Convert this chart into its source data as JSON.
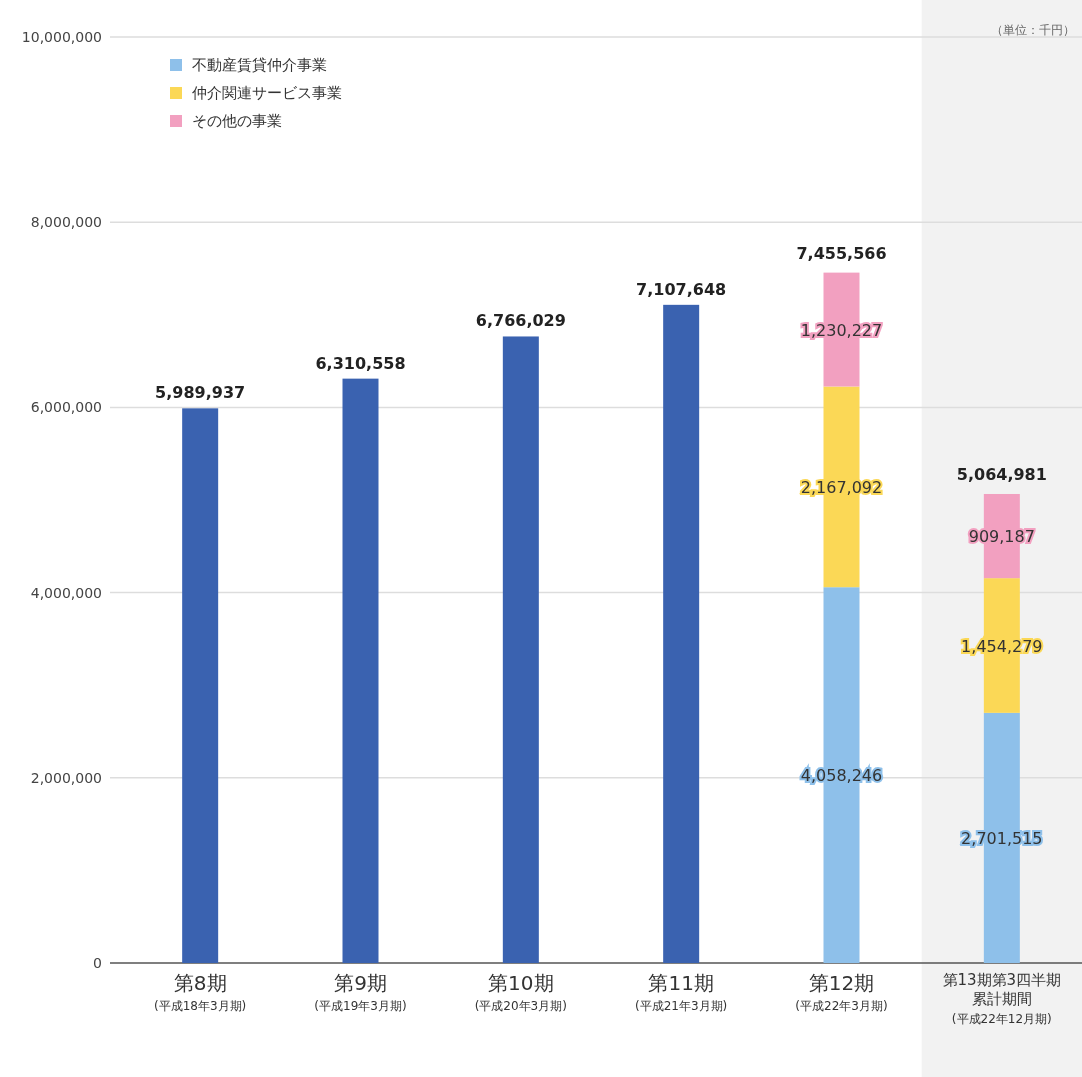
{
  "chart_data": {
    "type": "bar",
    "stacked": true,
    "categories": [
      "第8期\n(平成18年3月期)",
      "第9期\n(平成19年3月期)",
      "第10期\n(平成20年3月期)",
      "第11期\n(平成21年3月期)",
      "第12期\n(平成22年3月期)",
      "第13期第3四半期累計期間\n(平成22年12月期)"
    ],
    "series": [
      {
        "color": "#3a62b0",
        "values": [
          5989937,
          6310558,
          6766029,
          7107648,
          null,
          null
        ],
        "value_labels": [
          "5,989,937",
          "6,310,558",
          "6,766,029",
          "7,107,648",
          null,
          null
        ]
      },
      {
        "name": "不動産賃貸仲介事業",
        "color": "#8ec0ea",
        "values": [
          null,
          null,
          null,
          null,
          4058246,
          2701515
        ],
        "value_labels": [
          null,
          null,
          null,
          null,
          "4,058,246",
          "2,701,515"
        ]
      },
      {
        "name": "仲介関連サービス事業",
        "color": "#fbd856",
        "values": [
          null,
          null,
          null,
          null,
          2167092,
          1454279
        ],
        "value_labels": [
          null,
          null,
          null,
          null,
          "2,167,092",
          "1,454,279"
        ]
      },
      {
        "name": "その他の事業",
        "color": "#f2a0c0",
        "values": [
          null,
          null,
          null,
          null,
          1230227,
          909187
        ],
        "value_labels": [
          null,
          null,
          null,
          null,
          "1,230,227",
          "909,187"
        ]
      }
    ],
    "totals": [
      null,
      null,
      null,
      null,
      "7,455,566",
      "5,064,981"
    ],
    "ylim": [
      0,
      10000000
    ],
    "yticks": [
      {
        "value": 0,
        "label": "0"
      },
      {
        "value": 2000000,
        "label": "2,000,000"
      },
      {
        "value": 4000000,
        "label": "4,000,000"
      },
      {
        "value": 6000000,
        "label": "6,000,000"
      },
      {
        "value": 8000000,
        "label": "8,000,000"
      },
      {
        "value": 10000000,
        "label": "10,000,000"
      }
    ],
    "grid": "y",
    "legend": "top left",
    "bands": [
      {
        "axis": "x",
        "from": "第13期第3四半期累計期間\n(平成22年12月期)",
        "to": "第13期第3四半期累計期間\n(平成22年12月期)",
        "color": "#f2f2f2"
      }
    ],
    "annotations": [
      "（単位：千円）"
    ]
  }
}
